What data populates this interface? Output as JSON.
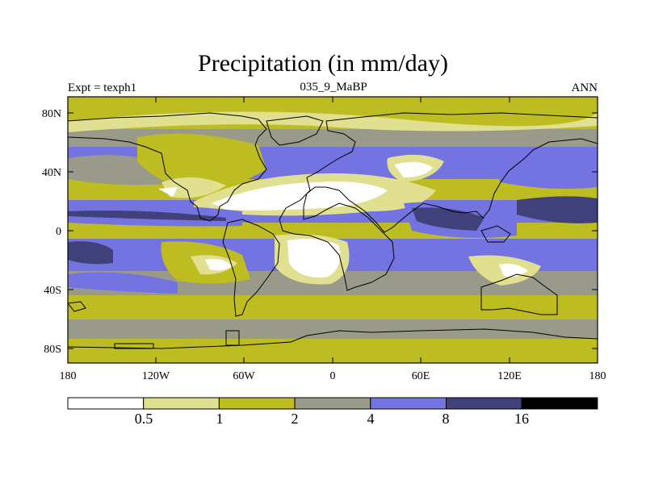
{
  "title": "Precipitation (in mm/day)",
  "left_subtitle": "Expt = texph1",
  "center_subtitle": "035_9_MaBP",
  "right_subtitle": "ANN",
  "y_ticks": [
    "80N",
    "40N",
    "0",
    "40S",
    "80S"
  ],
  "x_ticks": [
    "180",
    "120W",
    "60W",
    "0",
    "60E",
    "120E",
    "180"
  ],
  "colorbar": {
    "labels": [
      "0.5",
      "1",
      "2",
      "4",
      "8",
      "16"
    ],
    "colors": [
      "#ffffff",
      "#e0e090",
      "#bdbd21",
      "#9a9a8a",
      "#7373e1",
      "#40407a",
      "#000000"
    ]
  }
}
